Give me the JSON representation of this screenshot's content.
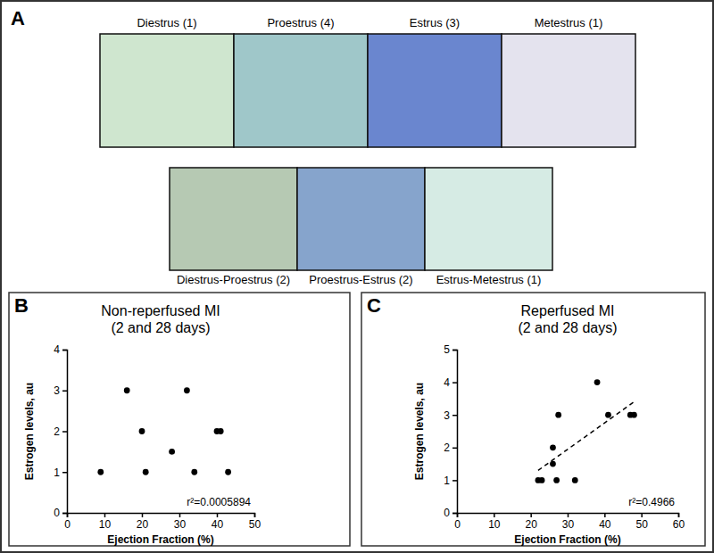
{
  "image_panel": {
    "panel_label": "A",
    "rows": [
      [
        {
          "label": "Diestrus (1)",
          "color": "#cfe6cf"
        },
        {
          "label": "Proestrus (4)",
          "color": "#9fc7c9"
        },
        {
          "label": "Estrus (3)",
          "color": "#6a86cf"
        },
        {
          "label": "Metestrus (1)",
          "color": "#e4e3ee"
        }
      ],
      [
        {
          "label": "Diestrus-Proestrus (2)",
          "color": "#b6c9b3"
        },
        {
          "label": "Proestrus-Estrus (2)",
          "color": "#86a4cc"
        },
        {
          "label": "Estrus-Metestrus (1)",
          "color": "#d6ebe4"
        }
      ]
    ]
  },
  "chart_data": [
    {
      "type": "scatter",
      "panel_label": "B",
      "title": "Non-reperfused MI",
      "subtitle": "(2 and 28 days)",
      "x_label": "Ejection Fraction (%)",
      "y_label": "Estrogen levels, au",
      "xlim": [
        0,
        50
      ],
      "xticks": [
        0,
        10,
        20,
        30,
        40,
        50
      ],
      "ylim": [
        0,
        4
      ],
      "yticks": [
        0,
        1,
        2,
        3,
        4
      ],
      "annotations": [
        "r²=0.0005894"
      ],
      "series": [
        {
          "type": "scatter",
          "marker": "circle",
          "color": "#000000",
          "x": [
            9,
            16,
            20,
            21,
            28,
            32,
            34,
            40,
            41,
            43
          ],
          "values": [
            1,
            3,
            2,
            1,
            1.5,
            3,
            1,
            2,
            2,
            1
          ]
        }
      ]
    },
    {
      "type": "scatter",
      "panel_label": "C",
      "title": "Reperfused MI",
      "subtitle": "(2 and 28 days)",
      "x_label": "Ejection Fraction (%)",
      "y_label": "Estrogen levels, au",
      "xlim": [
        0,
        60
      ],
      "xticks": [
        0,
        10,
        20,
        30,
        40,
        50,
        60
      ],
      "ylim": [
        0,
        5
      ],
      "yticks": [
        0,
        1,
        2,
        3,
        4,
        5
      ],
      "annotations": [
        "r²=0.4966"
      ],
      "series": [
        {
          "type": "scatter",
          "marker": "circle",
          "color": "#000000",
          "x": [
            22,
            23,
            26,
            26,
            27,
            27.5,
            32,
            38,
            41,
            47,
            48
          ],
          "values": [
            1,
            1,
            2,
            1.5,
            1,
            3,
            1,
            4,
            3,
            3,
            3
          ]
        },
        {
          "type": "line",
          "line_style": "dashed",
          "color": "#000000",
          "x": [
            22,
            48
          ],
          "values": [
            1.3,
            3.4
          ]
        }
      ]
    }
  ]
}
